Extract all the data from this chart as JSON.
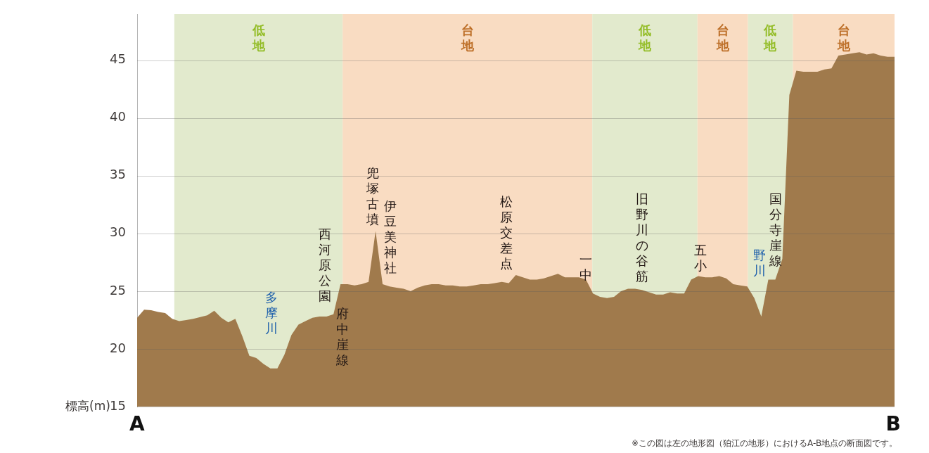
{
  "chart_data": {
    "type": "area",
    "ylabel": "標高(m)",
    "categories": [
      null,
      null,
      null,
      null,
      null,
      null,
      null,
      null,
      null,
      null,
      null,
      null,
      null,
      null,
      null,
      null,
      null,
      null,
      null,
      null,
      null,
      null,
      null,
      null,
      null,
      null,
      null,
      null,
      null,
      null,
      null,
      null,
      null,
      null,
      null,
      null,
      null,
      null,
      null,
      null,
      null,
      null,
      null,
      null,
      null,
      null,
      null,
      null,
      null,
      null,
      null,
      null,
      null,
      null,
      null,
      null,
      null,
      null,
      null,
      null,
      null,
      null,
      null,
      null,
      null,
      null,
      null,
      null,
      null,
      null,
      null,
      null,
      null,
      null,
      null,
      null,
      null,
      null,
      null,
      null,
      null,
      null,
      null,
      null,
      null,
      null,
      null,
      null,
      null,
      null,
      null,
      null,
      null,
      null,
      null,
      null,
      null,
      null,
      null,
      null,
      null,
      null,
      null,
      null,
      null,
      null,
      null,
      null,
      null
    ],
    "series": [
      {
        "color": "#a07a4c",
        "values": [
          22.7,
          23.4,
          23.35,
          23.2,
          23.1,
          22.6,
          22.4,
          22.5,
          22.6,
          22.75,
          22.9,
          23.3,
          22.7,
          22.3,
          22.6,
          21.1,
          19.4,
          19.2,
          18.7,
          18.3,
          18.3,
          19.5,
          21.2,
          22.1,
          22.4,
          22.7,
          22.8,
          22.8,
          23.0,
          25.6,
          25.6,
          25.5,
          25.6,
          25.8,
          30.2,
          25.6,
          25.4,
          25.3,
          25.2,
          25.0,
          25.3,
          25.5,
          25.6,
          25.6,
          25.5,
          25.5,
          25.4,
          25.4,
          25.5,
          25.6,
          25.6,
          25.7,
          25.8,
          25.7,
          26.4,
          26.2,
          26.0,
          26.0,
          26.1,
          26.3,
          26.5,
          26.2,
          26.2,
          26.2,
          26.0,
          24.8,
          24.5,
          24.4,
          24.5,
          25.0,
          25.2,
          25.2,
          25.1,
          24.9,
          24.7,
          24.7,
          24.9,
          24.8,
          24.8,
          26.0,
          26.3,
          26.2,
          26.2,
          26.3,
          26.1,
          25.6,
          25.5,
          25.4,
          24.4,
          22.8,
          26.0,
          26.0,
          27.8,
          42.0,
          44.1,
          44.0,
          44.0,
          44.0,
          44.2,
          44.3,
          45.4,
          45.5,
          45.6,
          45.7,
          45.5,
          45.6,
          45.4,
          45.3,
          45.3
        ]
      }
    ],
    "ylim": [
      15,
      49
    ],
    "yticks": [
      15,
      20,
      25,
      30,
      35,
      40,
      45
    ],
    "grid": "y",
    "tick_labels": "y",
    "annotations": [
      "低地",
      "台地",
      "低地",
      "台地",
      "低地",
      "台地",
      "多摩川",
      "西河原公園",
      "府中崖線",
      "兜塚古墳",
      "伊豆美神社",
      "松原交差点",
      "一中",
      "旧野川の谷筋",
      "五小",
      "野川",
      "国分寺崖線",
      "A",
      "B",
      "※この図は左の地形図（狛江の地形）におけるA-B地点の断面図です。"
    ]
  }
}
